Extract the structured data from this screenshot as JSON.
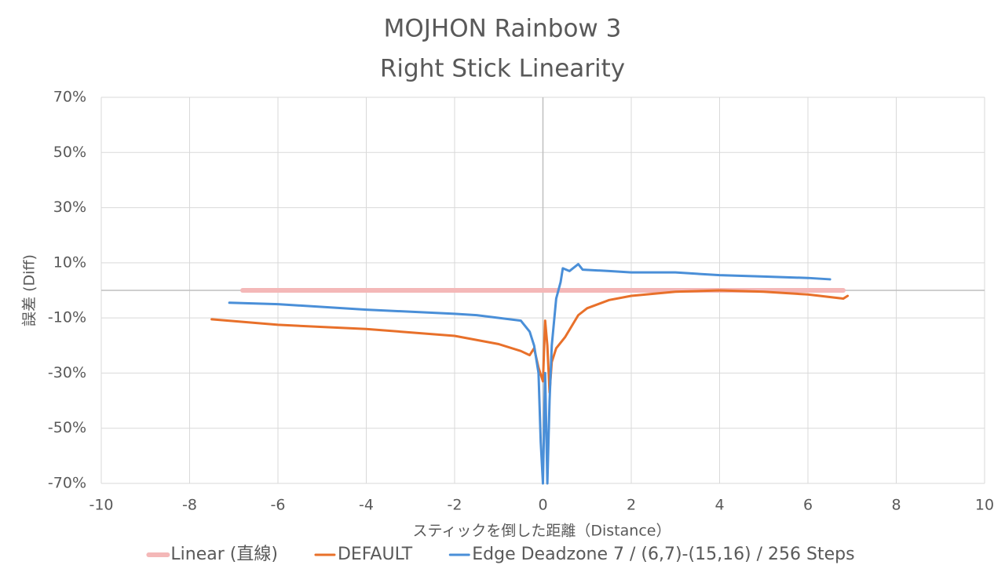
{
  "chart_data": {
    "type": "line",
    "title": "MOJHON Rainbow 3",
    "subtitle": "Right Stick Linearity",
    "x_label": "スティックを倒した距離（Distance）",
    "y_label": "誤差 (Diff)",
    "xlim": [
      -10,
      10
    ],
    "xticks": [
      -10,
      -8,
      -6,
      -4,
      -2,
      0,
      2,
      4,
      6,
      8,
      10
    ],
    "ylim": [
      -70,
      70
    ],
    "yticks": [
      {
        "value": -70,
        "label": "-70%"
      },
      {
        "value": -50,
        "label": "-50%"
      },
      {
        "value": -30,
        "label": "-30%"
      },
      {
        "value": -10,
        "label": "-10%"
      },
      {
        "value": 10,
        "label": "10%"
      },
      {
        "value": 30,
        "label": "30%"
      },
      {
        "value": 50,
        "label": "50%"
      },
      {
        "value": 70,
        "label": "70%"
      }
    ],
    "grid": true,
    "legend": "bottom",
    "series": [
      {
        "name": "Linear (直線)",
        "color": "#f4b8b8",
        "width": 6,
        "x": [
          -6.8,
          6.8
        ],
        "values": [
          0,
          0
        ]
      },
      {
        "name": "DEFAULT",
        "color": "#e8702a",
        "width": 3,
        "x": [
          -7.5,
          -6,
          -4,
          -2,
          -1,
          -0.5,
          -0.3,
          -0.2,
          -0.1,
          0,
          0.05,
          0.1,
          0.15,
          0.2,
          0.3,
          0.5,
          0.8,
          1,
          1.5,
          2,
          3,
          4,
          5,
          6,
          6.8,
          6.9
        ],
        "values": [
          -10.5,
          -12.5,
          -14,
          -16.5,
          -19.5,
          -22,
          -23.5,
          -21,
          -28,
          -33,
          -11,
          -20,
          -37,
          -26,
          -21,
          -17,
          -9,
          -6.5,
          -3.5,
          -2,
          -0.5,
          0,
          -0.5,
          -1.5,
          -3,
          -2
        ]
      },
      {
        "name": "Edge Deadzone 7 / (6,7)-(15,16) / 256 Steps",
        "color": "#4a8fd8",
        "width": 3,
        "x": [
          -7.1,
          -6,
          -4,
          -2,
          -1.5,
          -1,
          -0.5,
          -0.3,
          -0.2,
          -0.1,
          -0.05,
          0,
          0.05,
          0.1,
          0.15,
          0.2,
          0.3,
          0.4,
          0.45,
          0.6,
          0.8,
          0.9,
          1.5,
          2,
          3,
          4,
          5,
          6,
          6.5
        ],
        "values": [
          -4.5,
          -5,
          -7,
          -8.5,
          -9,
          -10,
          -11,
          -15,
          -20,
          -30,
          -55,
          -70,
          -30,
          -70,
          -40,
          -20,
          -3,
          3,
          8,
          7,
          9.5,
          7.5,
          7,
          6.5,
          6.5,
          5.5,
          5,
          4.5,
          4
        ]
      }
    ]
  }
}
